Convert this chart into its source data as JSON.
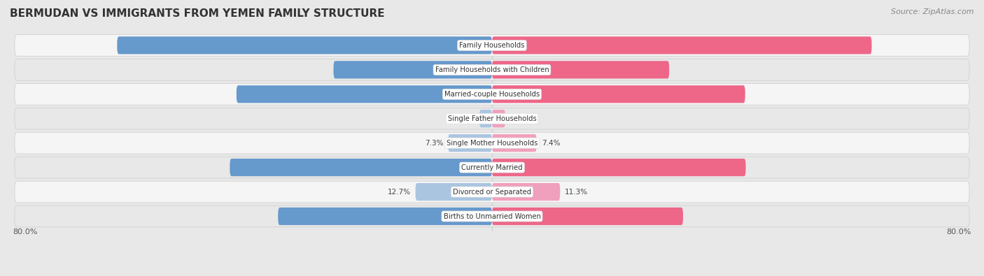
{
  "title": "BERMUDAN VS IMMIGRANTS FROM YEMEN FAMILY STRUCTURE",
  "source": "Source: ZipAtlas.com",
  "categories": [
    "Family Households",
    "Family Households with Children",
    "Married-couple Households",
    "Single Father Households",
    "Single Mother Households",
    "Currently Married",
    "Divorced or Separated",
    "Births to Unmarried Women"
  ],
  "bermudan_values": [
    62.2,
    26.3,
    42.4,
    2.1,
    7.3,
    43.5,
    12.7,
    35.5
  ],
  "yemen_values": [
    63.0,
    29.4,
    42.0,
    2.2,
    7.4,
    42.1,
    11.3,
    31.7
  ],
  "bermudan_color": "#6699CC",
  "bermudan_color_light": "#AAC5E0",
  "yemen_color": "#EE6688",
  "yemen_color_light": "#F0A0BC",
  "bermudan_label": "Bermudan",
  "yemen_label": "Immigrants from Yemen",
  "x_max": 80.0,
  "axis_label_left": "80.0%",
  "axis_label_right": "80.0%",
  "background_color": "#e8e8e8",
  "row_bg_light": "#f5f5f5",
  "row_bg_dark": "#e8e8e8",
  "title_fontsize": 11,
  "source_fontsize": 8
}
